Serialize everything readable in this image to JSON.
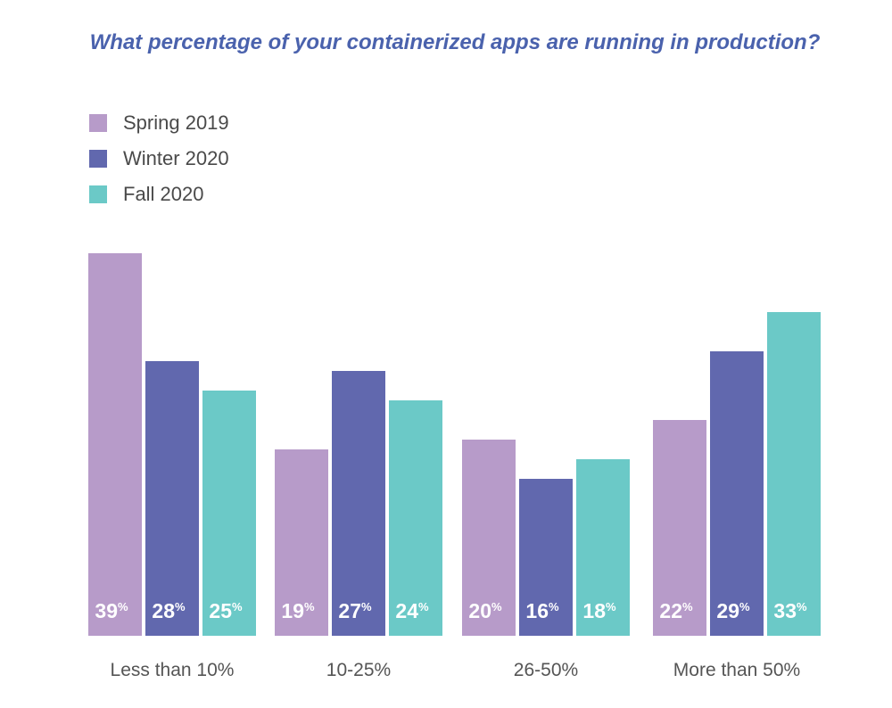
{
  "chart_data": {
    "type": "bar",
    "title": "What percentage of your containerized apps are running in production?",
    "categories": [
      "Less than 10%",
      "10-25%",
      "26-50%",
      "More than 50%"
    ],
    "series": [
      {
        "name": "Spring 2019",
        "color": "#b79bc9",
        "values": [
          39,
          19,
          20,
          22
        ]
      },
      {
        "name": "Winter 2020",
        "color": "#6168ae",
        "values": [
          28,
          27,
          16,
          29
        ]
      },
      {
        "name": "Fall 2020",
        "color": "#6bc9c7",
        "values": [
          25,
          24,
          18,
          33
        ]
      }
    ],
    "value_suffix": "%",
    "legend_position": "top-left",
    "grid": false,
    "xlabel": "",
    "ylabel": "",
    "ylim": [
      0,
      40
    ]
  }
}
